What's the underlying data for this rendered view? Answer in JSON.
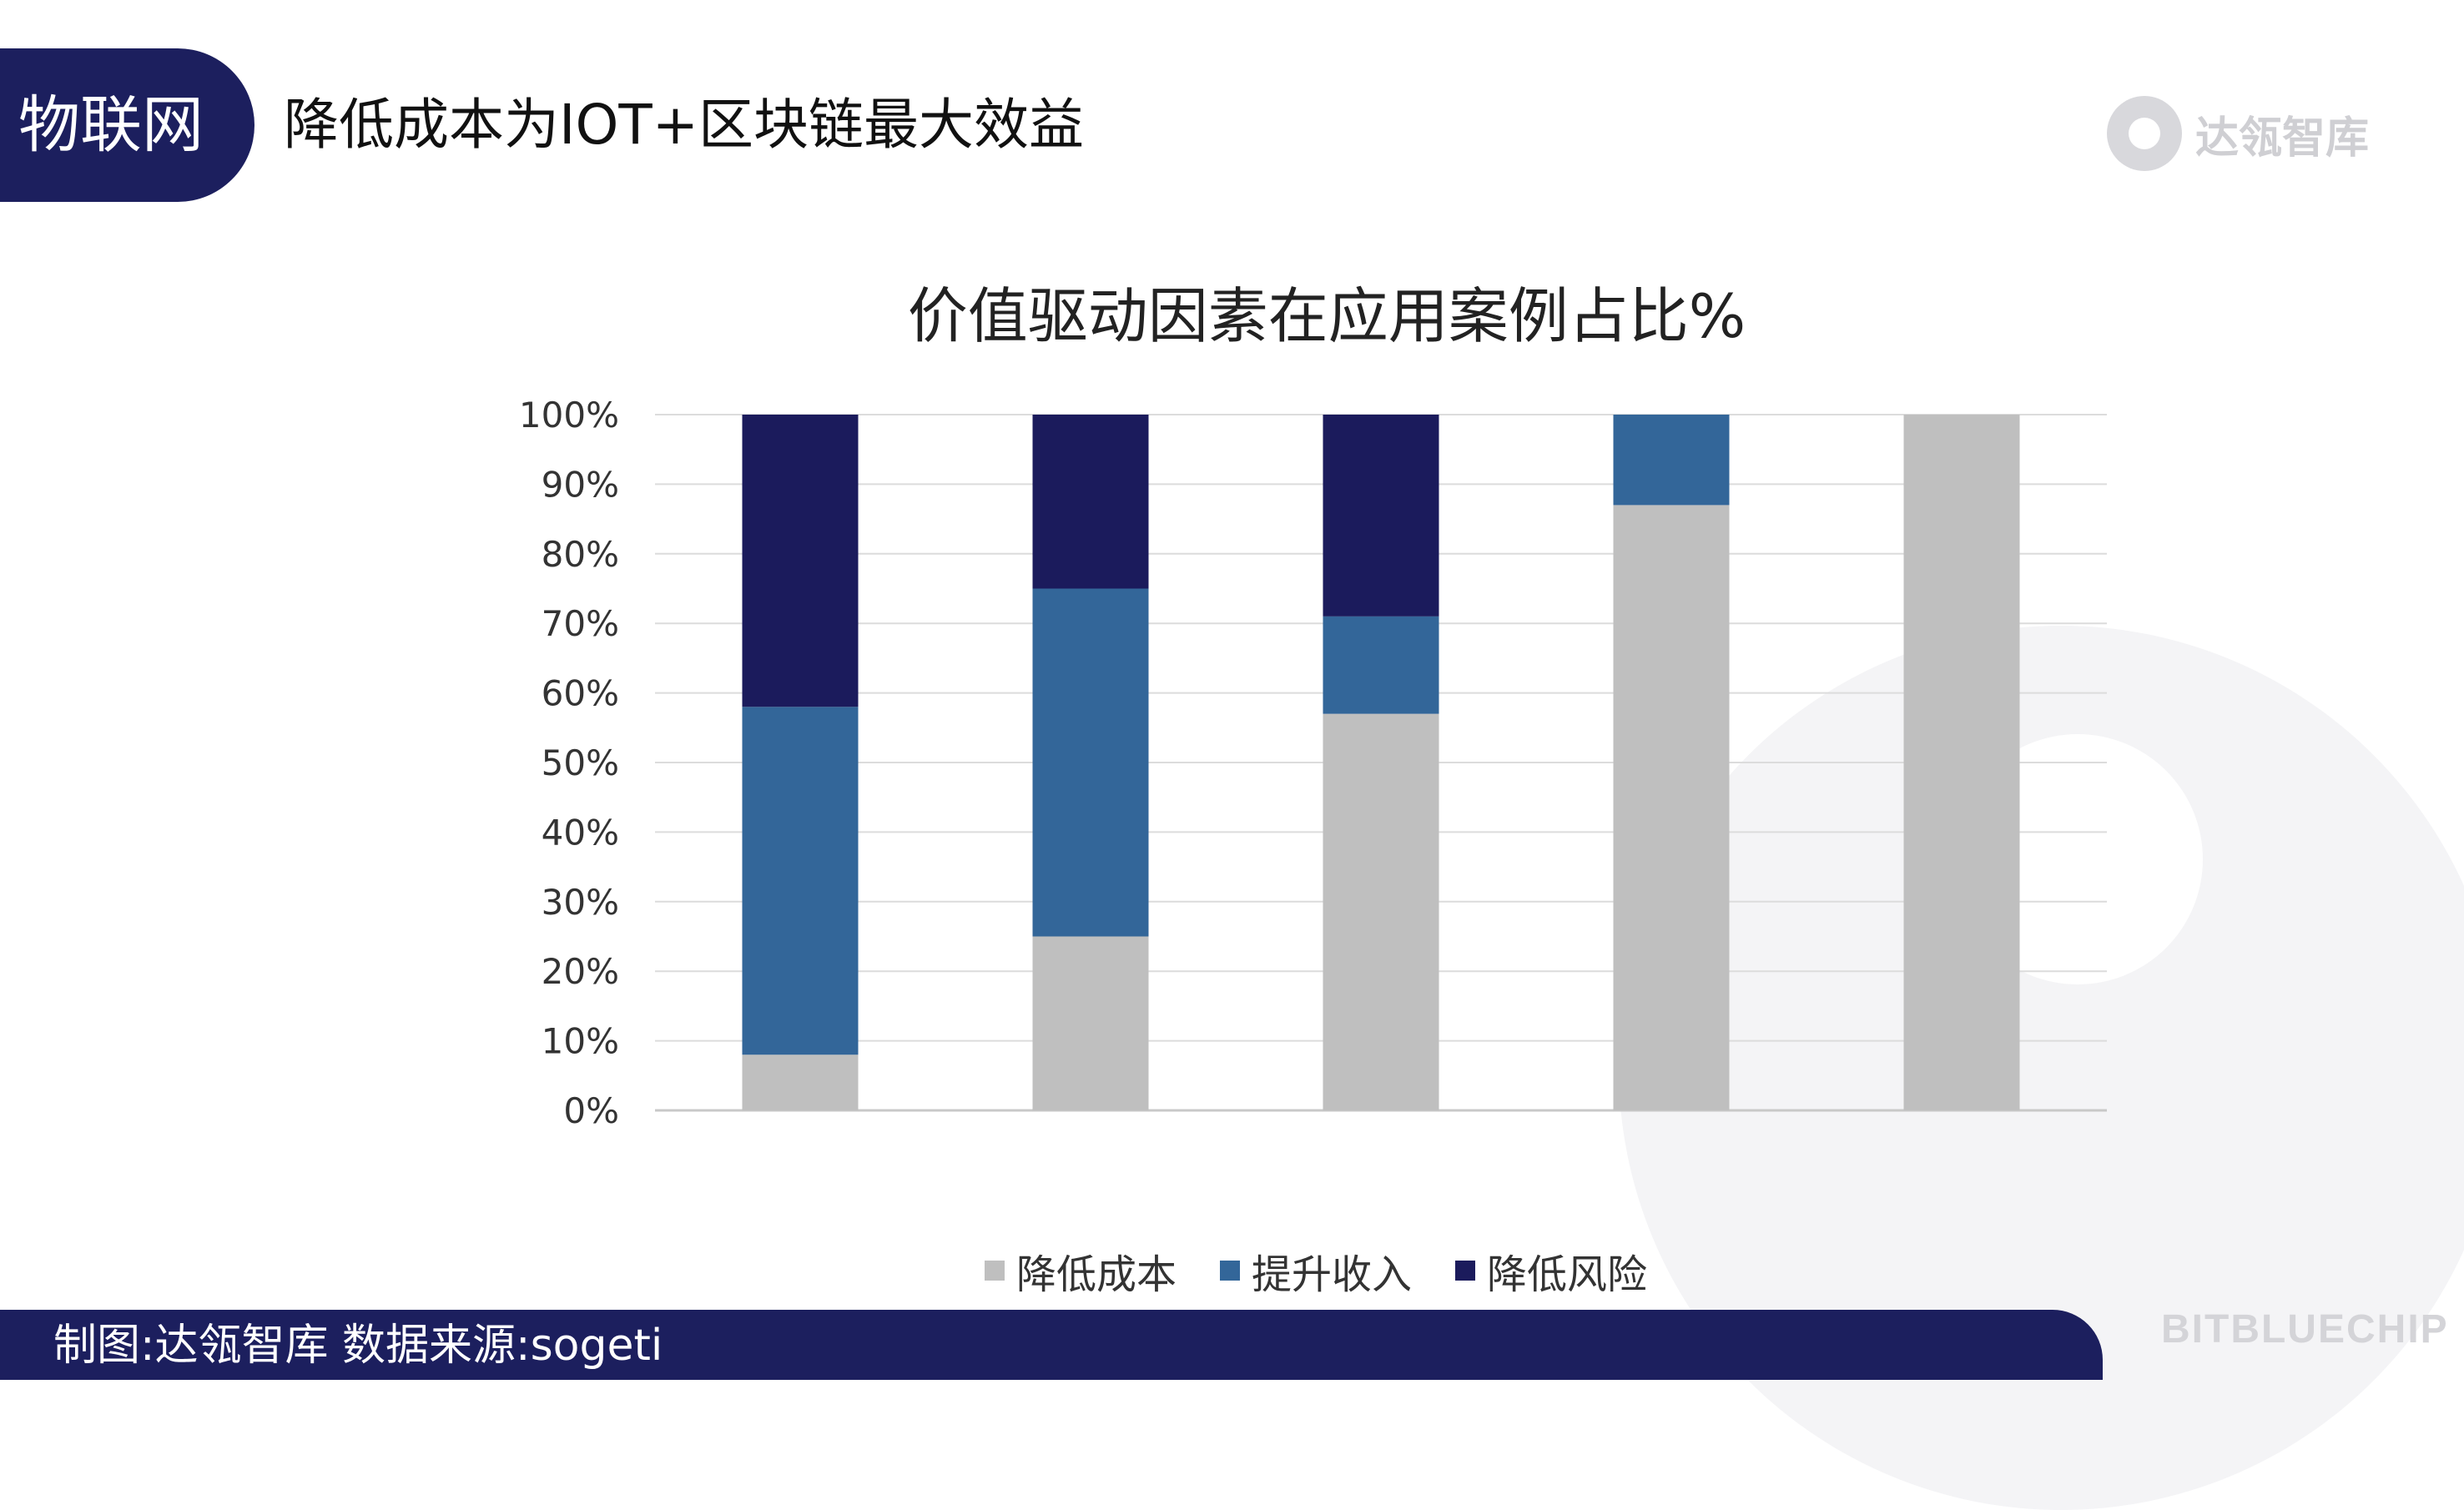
{
  "header": {
    "section_label": "物联网",
    "title": "降低成本为IOT+区块链最大效益",
    "brand_name": "达瓴智库"
  },
  "footer": {
    "source_text": "制图:达瓴智库 数据来源:sogeti",
    "brand_text": "BITBLUECHIP"
  },
  "colors": {
    "navy": "#1c1f5e",
    "series_cost": "#bfbfbf",
    "series_revenue": "#336699",
    "series_risk": "#1b1b5c"
  },
  "chart_data": {
    "type": "bar",
    "stacked": true,
    "title": "价值驱动因素在应用案例占比%",
    "categories": [
      "",
      "",
      "",
      "",
      ""
    ],
    "series": [
      {
        "name": "降低成本",
        "values": [
          8,
          25,
          57,
          87,
          100
        ],
        "color": "#bfbfbf"
      },
      {
        "name": "提升收入",
        "values": [
          50,
          50,
          14,
          13,
          0
        ],
        "color": "#336699"
      },
      {
        "name": "降低风险",
        "values": [
          42,
          25,
          29,
          0,
          0
        ],
        "color": "#1b1b5c"
      }
    ],
    "ylim": [
      0,
      100
    ],
    "yticks": [
      "0%",
      "10%",
      "20%",
      "30%",
      "40%",
      "50%",
      "60%",
      "70%",
      "80%",
      "90%",
      "100%"
    ],
    "grid": true,
    "legend_position": "bottom"
  }
}
